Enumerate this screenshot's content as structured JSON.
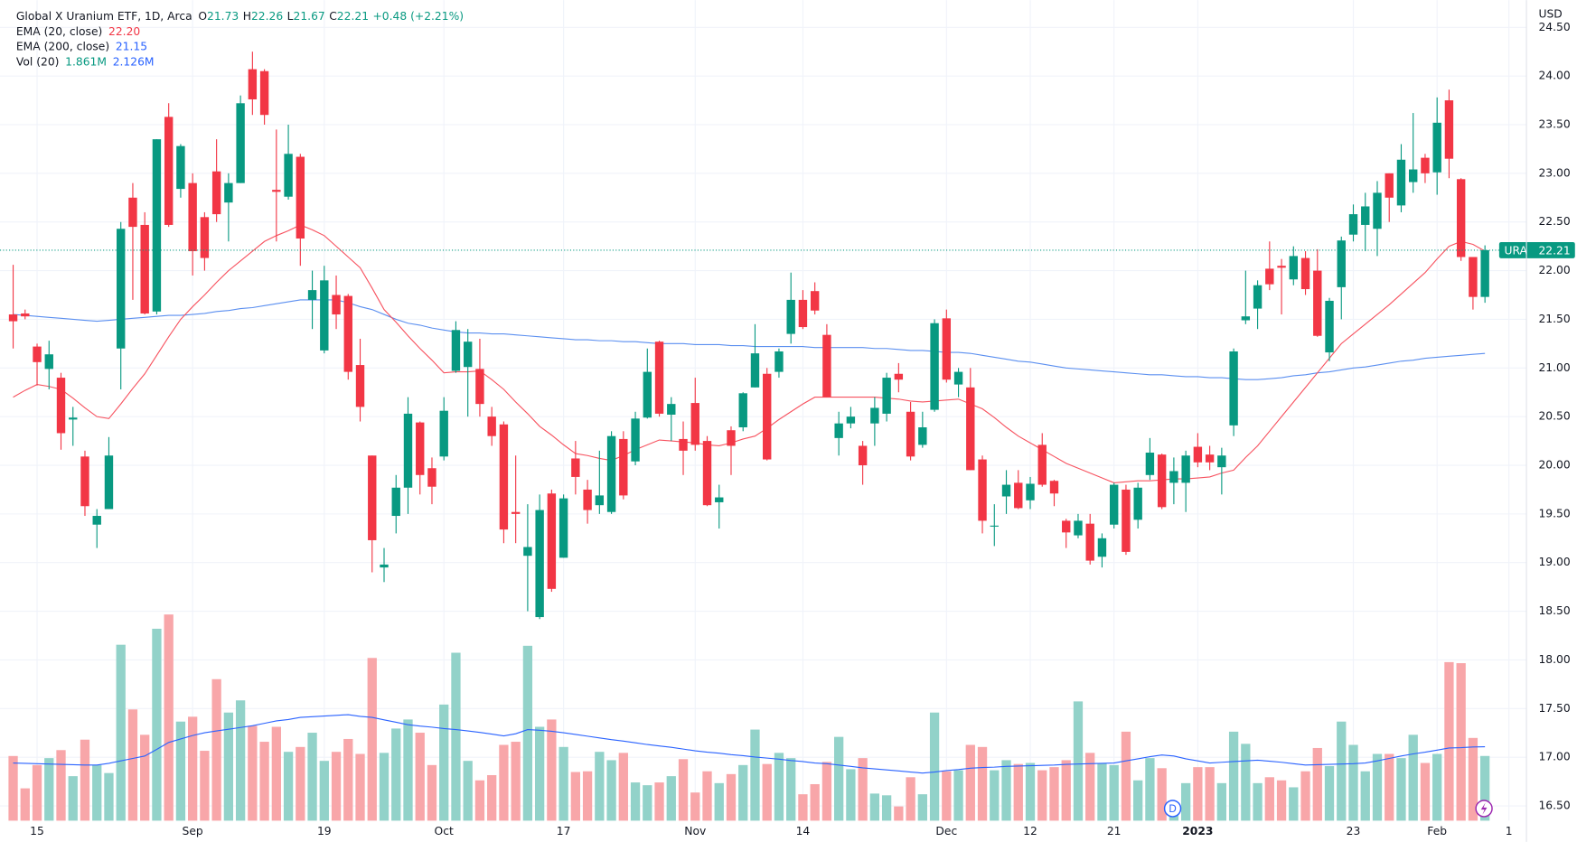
{
  "chart_data": {
    "type": "candlestick",
    "legend": {
      "title": "Global X Uranium ETF, 1D, Arca",
      "ohlc_keys": [
        "O",
        "H",
        "L",
        "C"
      ],
      "change": "+0.48 (+2.21%)"
    },
    "currency": "USD",
    "symbol": "URA",
    "dividend_marker": "D",
    "categories": [
      null,
      null,
      "15",
      null,
      null,
      null,
      null,
      null,
      null,
      null,
      null,
      null,
      null,
      null,
      null,
      "Sep",
      null,
      null,
      null,
      null,
      null,
      null,
      null,
      null,
      null,
      null,
      "19",
      null,
      null,
      null,
      null,
      null,
      null,
      null,
      null,
      null,
      "Oct",
      null,
      null,
      null,
      null,
      null,
      null,
      null,
      null,
      null,
      "17",
      null,
      null,
      null,
      null,
      null,
      null,
      null,
      null,
      null,
      null,
      "Nov",
      null,
      null,
      null,
      null,
      null,
      null,
      null,
      null,
      "14",
      null,
      null,
      null,
      null,
      null,
      null,
      null,
      null,
      null,
      null,
      null,
      "Dec",
      null,
      null,
      null,
      null,
      null,
      null,
      "12",
      null,
      null,
      null,
      null,
      null,
      null,
      "21",
      null,
      null,
      null,
      null,
      null,
      null,
      "2023",
      null,
      null,
      null,
      null,
      null,
      null,
      null,
      null,
      null,
      null,
      null,
      null,
      "23",
      null,
      null,
      null,
      null,
      null,
      null,
      "Feb",
      null,
      null,
      null,
      null
    ],
    "future_categories": [
      "1"
    ],
    "open": [
      21.55,
      21.56,
      21.22,
      20.99,
      20.9,
      20.47,
      20.09,
      19.39,
      19.55,
      21.2,
      22.75,
      22.47,
      21.58,
      23.58,
      22.84,
      22.9,
      22.55,
      23.02,
      22.7,
      22.9,
      24.07,
      24.05,
      22.83,
      22.76,
      23.17,
      21.7,
      21.18,
      21.75,
      21.74,
      21.03,
      20.1,
      18.95,
      19.48,
      19.77,
      20.44,
      19.97,
      20.09,
      20.97,
      21.01,
      20.99,
      20.5,
      20.42,
      19.52,
      19.07,
      18.44,
      19.71,
      19.05,
      20.07,
      19.75,
      19.59,
      19.52,
      20.27,
      20.04,
      20.49,
      21.27,
      20.52,
      20.27,
      20.64,
      20.25,
      19.62,
      20.36,
      20.39,
      20.8,
      20.94,
      20.96,
      21.35,
      21.7,
      21.79,
      21.34,
      20.28,
      20.43,
      20.2,
      20.43,
      20.53,
      20.94,
      20.55,
      20.21,
      20.57,
      21.51,
      20.83,
      20.8,
      20.06,
      19.37,
      19.68,
      19.82,
      19.64,
      20.21,
      19.84,
      19.43,
      19.28,
      19.4,
      19.06,
      19.39,
      19.75,
      19.44,
      19.9,
      20.11,
      19.82,
      19.82,
      20.19,
      20.11,
      19.98,
      20.41,
      21.49,
      21.61,
      22.02,
      22.05,
      21.91,
      22.13,
      22.0,
      21.16,
      21.83,
      22.37,
      22.47,
      22.43,
      23.0,
      22.67,
      22.91,
      23.16,
      23.01,
      23.75,
      22.94,
      22.14,
      21.73
    ],
    "high": [
      22.06,
      21.6,
      21.25,
      21.28,
      20.95,
      20.6,
      20.15,
      19.55,
      20.29,
      22.5,
      22.9,
      22.6,
      23.35,
      23.72,
      23.3,
      23.0,
      22.6,
      23.35,
      23.0,
      23.8,
      24.25,
      24.07,
      23.45,
      23.5,
      23.2,
      22.0,
      22.05,
      21.95,
      21.76,
      21.3,
      20.1,
      19.15,
      19.9,
      20.7,
      20.45,
      20.08,
      20.7,
      21.48,
      21.4,
      21.3,
      20.6,
      20.45,
      20.1,
      19.6,
      19.7,
      19.75,
      19.7,
      20.25,
      19.85,
      20.15,
      20.35,
      20.35,
      20.55,
      21.2,
      21.28,
      20.7,
      20.45,
      20.9,
      20.3,
      19.8,
      20.4,
      20.75,
      21.45,
      21.0,
      21.2,
      21.98,
      21.8,
      21.88,
      21.45,
      20.55,
      20.6,
      20.25,
      20.7,
      20.95,
      21.05,
      20.65,
      20.55,
      21.5,
      21.6,
      21.0,
      21.0,
      20.1,
      19.6,
      19.95,
      19.95,
      19.88,
      20.33,
      19.85,
      19.45,
      19.5,
      19.5,
      19.3,
      19.82,
      19.8,
      19.82,
      20.28,
      20.12,
      20.08,
      20.15,
      20.33,
      20.2,
      20.18,
      21.2,
      22.0,
      21.9,
      22.3,
      22.12,
      22.25,
      22.2,
      22.22,
      21.72,
      22.35,
      22.68,
      22.8,
      22.92,
      23.0,
      23.3,
      23.62,
      23.2,
      23.78,
      23.86,
      22.95,
      22.14,
      22.26
    ],
    "low": [
      21.2,
      21.5,
      20.82,
      20.78,
      20.16,
      20.2,
      19.48,
      19.15,
      19.55,
      20.78,
      21.7,
      21.55,
      21.55,
      22.45,
      22.75,
      21.95,
      22.0,
      22.5,
      22.3,
      22.9,
      23.6,
      23.5,
      22.3,
      22.73,
      22.05,
      21.4,
      21.15,
      21.4,
      20.88,
      20.45,
      18.9,
      18.8,
      19.3,
      19.5,
      19.7,
      19.6,
      20.05,
      20.95,
      20.5,
      20.5,
      20.2,
      19.2,
      19.2,
      18.5,
      18.42,
      18.7,
      19.05,
      19.7,
      19.4,
      19.5,
      19.5,
      19.65,
      20.0,
      20.48,
      20.5,
      20.25,
      19.9,
      20.15,
      19.58,
      19.35,
      19.9,
      20.35,
      20.8,
      20.05,
      20.9,
      21.25,
      21.4,
      21.55,
      20.7,
      20.1,
      20.38,
      19.8,
      20.2,
      20.45,
      20.75,
      20.05,
      20.18,
      20.55,
      20.85,
      20.7,
      19.95,
      19.3,
      19.17,
      19.5,
      19.55,
      19.55,
      19.78,
      19.58,
      19.15,
      19.25,
      18.98,
      18.95,
      19.35,
      19.08,
      19.35,
      19.85,
      19.55,
      19.6,
      19.52,
      19.98,
      19.95,
      19.7,
      20.3,
      21.45,
      21.4,
      21.8,
      21.55,
      21.85,
      21.75,
      21.32,
      21.07,
      21.5,
      22.3,
      22.2,
      22.15,
      22.5,
      22.6,
      22.8,
      22.9,
      22.78,
      22.95,
      22.1,
      21.6,
      21.67
    ],
    "close": [
      21.48,
      21.53,
      21.06,
      21.14,
      20.33,
      20.49,
      19.58,
      19.48,
      20.1,
      22.43,
      22.45,
      21.56,
      23.35,
      22.47,
      23.28,
      22.2,
      22.13,
      22.58,
      22.9,
      23.72,
      23.76,
      23.6,
      22.81,
      23.2,
      22.33,
      21.8,
      21.9,
      21.55,
      20.96,
      20.6,
      19.23,
      18.98,
      19.77,
      20.53,
      19.9,
      19.78,
      20.56,
      21.39,
      21.27,
      20.63,
      20.3,
      19.34,
      19.5,
      19.16,
      19.54,
      18.73,
      19.66,
      19.88,
      19.54,
      19.69,
      20.3,
      19.69,
      20.48,
      20.96,
      20.53,
      20.63,
      20.15,
      20.21,
      19.59,
      19.67,
      20.2,
      20.74,
      21.15,
      20.06,
      21.17,
      21.7,
      21.42,
      21.59,
      20.7,
      20.43,
      20.5,
      20.0,
      20.59,
      20.9,
      20.88,
      20.09,
      20.39,
      21.46,
      20.88,
      20.96,
      19.95,
      19.43,
      19.38,
      19.8,
      19.56,
      19.81,
      19.8,
      19.71,
      19.31,
      19.43,
      19.02,
      19.25,
      19.8,
      19.11,
      19.77,
      20.13,
      19.57,
      19.94,
      20.1,
      20.03,
      20.03,
      20.1,
      21.17,
      21.53,
      21.85,
      21.86,
      22.03,
      22.15,
      21.81,
      21.33,
      21.69,
      22.31,
      22.58,
      22.66,
      22.8,
      22.75,
      23.14,
      23.04,
      23.0,
      23.52,
      23.15,
      22.14,
      21.73,
      22.21
    ],
    "volume": {
      "values": [
        1.86,
        0.93,
        1.6,
        1.8,
        2.03,
        1.28,
        2.33,
        1.6,
        1.37,
        5.06,
        3.2,
        2.47,
        5.52,
        5.93,
        2.85,
        2.99,
        2.01,
        4.07,
        3.11,
        3.46,
        2.73,
        2.27,
        2.7,
        1.98,
        2.12,
        2.53,
        1.72,
        1.98,
        2.35,
        1.92,
        4.68,
        1.95,
        2.65,
        2.91,
        2.53,
        1.6,
        3.34,
        4.83,
        1.72,
        1.16,
        1.31,
        2.18,
        2.27,
        5.03,
        2.7,
        2.91,
        2.12,
        1.4,
        1.42,
        1.98,
        1.74,
        1.95,
        1.1,
        1.02,
        1.1,
        1.28,
        1.77,
        0.81,
        1.42,
        1.08,
        1.34,
        1.6,
        2.62,
        1.63,
        1.95,
        1.8,
        0.76,
        1.05,
        1.69,
        2.41,
        1.48,
        1.8,
        0.78,
        0.73,
        0.41,
        1.25,
        0.76,
        3.11,
        1.42,
        1.45,
        2.18,
        2.12,
        1.45,
        1.74,
        1.63,
        1.66,
        1.45,
        1.54,
        1.74,
        3.43,
        1.95,
        1.66,
        1.6,
        2.56,
        1.16,
        1.8,
        1.51,
        0.29,
        1.08,
        1.54,
        1.54,
        1.08,
        2.56,
        2.21,
        1.08,
        1.25,
        1.16,
        0.96,
        1.42,
        2.09,
        1.57,
        2.85,
        2.18,
        1.42,
        1.92,
        1.92,
        1.8,
        2.47,
        1.66,
        1.92,
        4.56,
        4.53,
        2.38,
        1.861
      ],
      "value_label": "1.861M"
    },
    "ema20": {
      "name": "EMA (20, close)",
      "color": "#f7525f",
      "value_label": "22.20",
      "values": [
        20.7,
        20.77,
        20.83,
        20.81,
        20.78,
        20.69,
        20.59,
        20.5,
        20.48,
        20.63,
        20.79,
        20.94,
        21.13,
        21.32,
        21.5,
        21.63,
        21.75,
        21.88,
        22.0,
        22.1,
        22.2,
        22.3,
        22.36,
        22.41,
        22.47,
        22.42,
        22.36,
        22.25,
        22.14,
        22.03,
        21.82,
        21.6,
        21.47,
        21.33,
        21.2,
        21.08,
        20.95,
        20.96,
        20.96,
        20.97,
        20.88,
        20.78,
        20.65,
        20.53,
        20.4,
        20.31,
        20.21,
        20.12,
        20.1,
        20.07,
        20.05,
        20.1,
        20.16,
        20.21,
        20.26,
        20.25,
        20.24,
        20.23,
        20.21,
        20.2,
        20.23,
        20.27,
        20.3,
        20.38,
        20.47,
        20.55,
        20.63,
        20.7,
        20.7,
        20.7,
        20.7,
        20.7,
        20.7,
        20.69,
        20.68,
        20.66,
        20.65,
        20.66,
        20.67,
        20.68,
        20.63,
        20.58,
        20.49,
        20.39,
        20.3,
        20.23,
        20.16,
        20.09,
        20.02,
        19.97,
        19.92,
        19.87,
        19.82,
        19.83,
        19.84,
        19.84,
        19.85,
        19.86,
        19.86,
        19.87,
        19.88,
        19.92,
        19.95,
        20.08,
        20.2,
        20.35,
        20.5,
        20.65,
        20.8,
        20.95,
        21.1,
        21.25,
        21.35,
        21.45,
        21.55,
        21.65,
        21.76,
        21.87,
        21.98,
        22.12,
        22.25,
        22.3,
        22.27,
        22.2
      ]
    },
    "ema200": {
      "name": "EMA (200, close)",
      "color": "#5b8ff0",
      "values": [
        21.55,
        21.54,
        21.53,
        21.52,
        21.51,
        21.5,
        21.49,
        21.48,
        21.49,
        21.5,
        21.51,
        21.52,
        21.53,
        21.54,
        21.54,
        21.55,
        21.56,
        21.58,
        21.59,
        21.61,
        21.62,
        21.64,
        21.66,
        21.68,
        21.7,
        21.7,
        21.7,
        21.7,
        21.67,
        21.63,
        21.6,
        21.55,
        21.5,
        21.46,
        21.44,
        21.41,
        21.39,
        21.37,
        21.36,
        21.36,
        21.35,
        21.35,
        21.34,
        21.33,
        21.32,
        21.31,
        21.3,
        21.29,
        21.29,
        21.28,
        21.28,
        21.27,
        21.27,
        21.26,
        21.25,
        21.25,
        21.25,
        21.24,
        21.24,
        21.24,
        21.23,
        21.23,
        21.22,
        21.22,
        21.22,
        21.22,
        21.22,
        21.21,
        21.21,
        21.21,
        21.21,
        21.21,
        21.2,
        21.2,
        21.19,
        21.18,
        21.18,
        21.17,
        21.16,
        21.16,
        21.15,
        21.13,
        21.11,
        21.09,
        21.07,
        21.06,
        21.04,
        21.02,
        21.0,
        20.99,
        20.98,
        20.97,
        20.96,
        20.95,
        20.94,
        20.93,
        20.93,
        20.92,
        20.91,
        20.91,
        20.9,
        20.9,
        20.89,
        20.88,
        20.88,
        20.89,
        20.9,
        20.92,
        20.93,
        20.95,
        20.96,
        20.98,
        21.0,
        21.01,
        21.03,
        21.05,
        21.07,
        21.08,
        21.1,
        21.11,
        21.12,
        21.13,
        21.14,
        21.15
      ]
    },
    "vol_ma": {
      "name": "Vol (20)",
      "color": "#2962ff",
      "value_label": "2.126M",
      "values": [
        1.66,
        1.65,
        1.64,
        1.63,
        1.62,
        1.61,
        1.6,
        1.6,
        1.65,
        1.72,
        1.79,
        1.86,
        2.05,
        2.25,
        2.35,
        2.45,
        2.53,
        2.58,
        2.63,
        2.68,
        2.73,
        2.8,
        2.87,
        2.91,
        2.97,
        2.99,
        3.01,
        3.03,
        3.05,
        3.0,
        2.97,
        2.9,
        2.83,
        2.76,
        2.72,
        2.69,
        2.65,
        2.62,
        2.58,
        2.54,
        2.49,
        2.44,
        2.5,
        2.62,
        2.6,
        2.57,
        2.53,
        2.48,
        2.43,
        2.38,
        2.33,
        2.29,
        2.24,
        2.19,
        2.15,
        2.11,
        2.06,
        2.01,
        1.97,
        1.94,
        1.9,
        1.87,
        1.83,
        1.8,
        1.77,
        1.73,
        1.7,
        1.66,
        1.64,
        1.6,
        1.56,
        1.52,
        1.49,
        1.46,
        1.43,
        1.4,
        1.37,
        1.4,
        1.44,
        1.47,
        1.51,
        1.53,
        1.54,
        1.56,
        1.57,
        1.58,
        1.59,
        1.6,
        1.62,
        1.63,
        1.64,
        1.65,
        1.66,
        1.72,
        1.78,
        1.84,
        1.89,
        1.86,
        1.78,
        1.72,
        1.66,
        1.68,
        1.7,
        1.72,
        1.74,
        1.71,
        1.68,
        1.64,
        1.6,
        1.61,
        1.62,
        1.63,
        1.64,
        1.66,
        1.72,
        1.79,
        1.86,
        1.92,
        1.97,
        2.03,
        2.09,
        2.1,
        2.12,
        2.126
      ]
    },
    "up_color": "#089981",
    "down_color": "#f23645",
    "up_volume_color": "#92d2c9",
    "down_volume_color": "#f8a6a9",
    "ylim": [
      16.13,
      24.78
    ],
    "yticks": [
      {
        "value": 24.5,
        "label": "24.50"
      },
      {
        "value": 24,
        "label": "24.00"
      },
      {
        "value": 23.5,
        "label": "23.50"
      },
      {
        "value": 23,
        "label": "23.00"
      },
      {
        "value": 22.5,
        "label": "22.50"
      },
      {
        "value": 22,
        "label": "22.00"
      },
      {
        "value": 21.5,
        "label": "21.50"
      },
      {
        "value": 21,
        "label": "21.00"
      },
      {
        "value": 20.5,
        "label": "20.50"
      },
      {
        "value": 20,
        "label": "20.00"
      },
      {
        "value": 19.5,
        "label": "19.50"
      },
      {
        "value": 19,
        "label": "19.00"
      },
      {
        "value": 18.5,
        "label": "18.50"
      },
      {
        "value": 18,
        "label": "18.00"
      },
      {
        "value": 17.5,
        "label": "17.50"
      },
      {
        "value": 17,
        "label": "17.00"
      },
      {
        "value": 16.5,
        "label": "16.50"
      }
    ],
    "y2lim": [
      0,
      23.6
    ],
    "grid": true
  }
}
